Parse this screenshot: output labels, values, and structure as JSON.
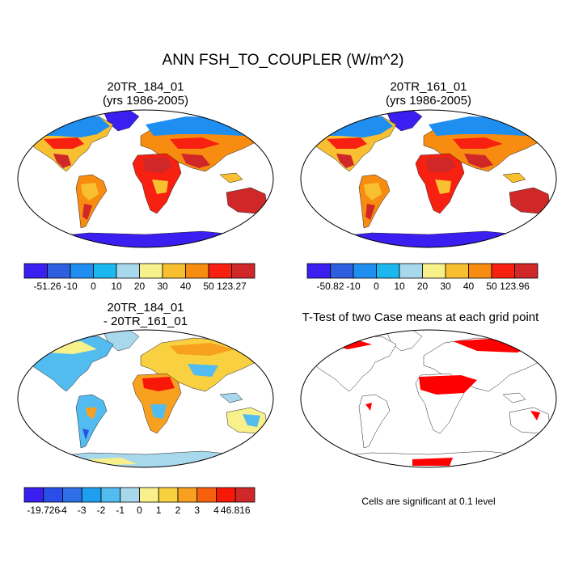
{
  "figure_title": "ANN FSH_TO_COUPLER (W/m^2)",
  "panels": [
    {
      "line1": "20TR_184_01",
      "line2": "(yrs 1986-2005)"
    },
    {
      "line1": "20TR_161_01",
      "line2": "(yrs 1986-2005)"
    },
    {
      "line1": "20TR_184_01",
      "line2": "- 20TR_161_01"
    },
    {
      "line1": "T-Test of two Case means at each grid point",
      "line2": ""
    }
  ],
  "colorbars": [
    {
      "labels": [
        "-51.26",
        "-10",
        "0",
        "10",
        "20",
        "30",
        "40",
        "50",
        "123.27"
      ],
      "colors": [
        "#3a1ff0",
        "#2e5fe0",
        "#1e8ff0",
        "#1bb8f0",
        "#a8d8ec",
        "#f8f08a",
        "#f8c030",
        "#f88c10",
        "#f82010",
        "#d02828"
      ]
    },
    {
      "labels": [
        "-50.82",
        "-10",
        "0",
        "10",
        "20",
        "30",
        "40",
        "50",
        "123.96"
      ],
      "colors": [
        "#3a1ff0",
        "#2e5fe0",
        "#1e8ff0",
        "#1bb8f0",
        "#a8d8ec",
        "#f8f08a",
        "#f8c030",
        "#f88c10",
        "#f82010",
        "#d02828"
      ]
    },
    {
      "labels": [
        "-19.726",
        "-4",
        "-3",
        "-2",
        "-1",
        "0",
        "1",
        "2",
        "3",
        "4",
        "46.816"
      ],
      "colors": [
        "#3a1ff0",
        "#2a4fe8",
        "#2e6fe8",
        "#1e9ff0",
        "#52bcf0",
        "#a8d8ec",
        "#f8f08a",
        "#f8d040",
        "#f8a020",
        "#f86010",
        "#f81808",
        "#d02828"
      ]
    }
  ],
  "significance_note": "Cells are significant at 0.1 level",
  "palette": {
    "polar": "#3a1ff0",
    "cold": "#1e8ff0",
    "temperate": "#f8c030",
    "hot": "#f82010",
    "hottest": "#d02828",
    "sig": "#ff0000",
    "diff_neg": "#52bcf0",
    "diff_pos": "#f8d040"
  }
}
